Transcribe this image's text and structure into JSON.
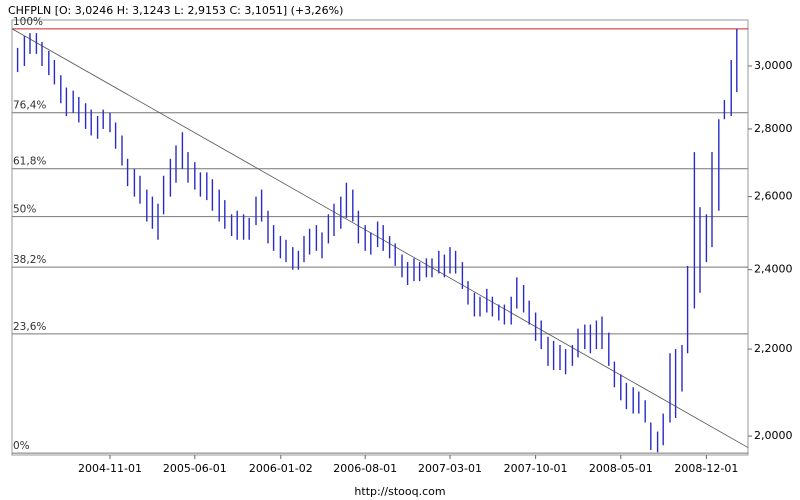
{
  "chart_data": {
    "type": "ohlc",
    "title": "CHFPLN [O: 3,0246  H: 3,1243  L: 2,9153  C: 3,1051] (+3,26%)",
    "source": "http://stooq.com",
    "log_scale": true,
    "ylim": [
      1.959,
      3.155
    ],
    "yticks": [
      {
        "value": 2,
        "label": "2,0000"
      },
      {
        "value": 2.2,
        "label": "2,2000"
      },
      {
        "value": 2.4,
        "label": "2,4000"
      },
      {
        "value": 2.6,
        "label": "2,6000"
      },
      {
        "value": 2.8,
        "label": "2,8000"
      },
      {
        "value": 3,
        "label": "3,0000"
      }
    ],
    "xlim": [
      "2004-03-01",
      "2009-03-15"
    ],
    "xticks": [
      "2004-11-01",
      "2005-06-01",
      "2006-01-02",
      "2006-08-01",
      "2007-03-01",
      "2007-10-01",
      "2008-05-01",
      "2008-12-01"
    ],
    "color": "#2a2ac8",
    "x": [
      "2004-03-15",
      "2004-04-01",
      "2004-04-15",
      "2004-05-01",
      "2004-05-15",
      "2004-06-01",
      "2004-06-15",
      "2004-07-01",
      "2004-07-15",
      "2004-08-01",
      "2004-08-15",
      "2004-09-01",
      "2004-09-15",
      "2004-10-01",
      "2004-10-15",
      "2004-11-01",
      "2004-11-15",
      "2004-12-01",
      "2004-12-15",
      "2005-01-01",
      "2005-01-15",
      "2005-02-01",
      "2005-02-15",
      "2005-03-01",
      "2005-03-15",
      "2005-04-01",
      "2005-04-15",
      "2005-05-01",
      "2005-05-15",
      "2005-06-01",
      "2005-06-15",
      "2005-07-01",
      "2005-07-15",
      "2005-08-01",
      "2005-08-15",
      "2005-09-01",
      "2005-09-15",
      "2005-10-01",
      "2005-10-15",
      "2005-11-01",
      "2005-11-15",
      "2005-12-01",
      "2005-12-15",
      "2006-01-01",
      "2006-01-15",
      "2006-02-01",
      "2006-02-15",
      "2006-03-01",
      "2006-03-15",
      "2006-04-01",
      "2006-04-15",
      "2006-05-01",
      "2006-05-15",
      "2006-06-01",
      "2006-06-15",
      "2006-07-01",
      "2006-07-15",
      "2006-08-01",
      "2006-08-15",
      "2006-09-01",
      "2006-09-15",
      "2006-10-01",
      "2006-10-15",
      "2006-11-01",
      "2006-11-15",
      "2006-12-01",
      "2006-12-15",
      "2007-01-01",
      "2007-01-15",
      "2007-02-01",
      "2007-02-15",
      "2007-03-01",
      "2007-03-15",
      "2007-04-01",
      "2007-04-15",
      "2007-05-01",
      "2007-05-15",
      "2007-06-01",
      "2007-06-15",
      "2007-07-01",
      "2007-07-15",
      "2007-08-01",
      "2007-08-15",
      "2007-09-01",
      "2007-09-15",
      "2007-10-01",
      "2007-10-15",
      "2007-11-01",
      "2007-11-15",
      "2007-12-01",
      "2007-12-15",
      "2008-01-01",
      "2008-01-15",
      "2008-02-01",
      "2008-02-15",
      "2008-03-01",
      "2008-03-15",
      "2008-04-01",
      "2008-04-15",
      "2008-05-01",
      "2008-05-15",
      "2008-06-01",
      "2008-06-15",
      "2008-07-01",
      "2008-07-15",
      "2008-08-01",
      "2008-08-15",
      "2008-09-01",
      "2008-09-15",
      "2008-10-01",
      "2008-10-15",
      "2008-11-01",
      "2008-11-15",
      "2008-12-01",
      "2008-12-15",
      "2009-01-01",
      "2009-01-15",
      "2009-02-01",
      "2009-02-15"
    ],
    "high": [
      3.06,
      3.1,
      3.11,
      3.11,
      3.08,
      3.05,
      3.02,
      2.97,
      2.93,
      2.92,
      2.9,
      2.88,
      2.86,
      2.84,
      2.86,
      2.85,
      2.82,
      2.78,
      2.71,
      2.68,
      2.66,
      2.62,
      2.6,
      2.58,
      2.66,
      2.71,
      2.75,
      2.79,
      2.73,
      2.7,
      2.67,
      2.67,
      2.65,
      2.62,
      2.59,
      2.55,
      2.56,
      2.55,
      2.54,
      2.6,
      2.62,
      2.56,
      2.52,
      2.49,
      2.48,
      2.46,
      2.45,
      2.49,
      2.51,
      2.52,
      2.5,
      2.55,
      2.58,
      2.6,
      2.64,
      2.62,
      2.56,
      2.52,
      2.5,
      2.53,
      2.52,
      2.49,
      2.47,
      2.44,
      2.42,
      2.43,
      2.42,
      2.43,
      2.43,
      2.45,
      2.44,
      2.46,
      2.45,
      2.42,
      2.37,
      2.34,
      2.33,
      2.35,
      2.33,
      2.31,
      2.31,
      2.33,
      2.38,
      2.36,
      2.32,
      2.29,
      2.27,
      2.23,
      2.22,
      2.21,
      2.2,
      2.21,
      2.25,
      2.26,
      2.26,
      2.27,
      2.28,
      2.24,
      2.17,
      2.14,
      2.12,
      2.11,
      2.1,
      2.08,
      2.03,
      2.01,
      2.05,
      2.19,
      2.2,
      2.21,
      2.41,
      2.73,
      2.57,
      2.55,
      2.73,
      2.83,
      2.89,
      3.02,
      3.1243
    ],
    "low": [
      2.98,
      3.0,
      3.04,
      3.04,
      3.0,
      2.97,
      2.94,
      2.88,
      2.84,
      2.85,
      2.82,
      2.8,
      2.78,
      2.77,
      2.8,
      2.79,
      2.74,
      2.69,
      2.63,
      2.6,
      2.58,
      2.53,
      2.51,
      2.48,
      2.55,
      2.6,
      2.64,
      2.68,
      2.64,
      2.62,
      2.6,
      2.59,
      2.56,
      2.53,
      2.51,
      2.49,
      2.48,
      2.48,
      2.48,
      2.52,
      2.53,
      2.47,
      2.45,
      2.43,
      2.42,
      2.4,
      2.4,
      2.42,
      2.44,
      2.45,
      2.43,
      2.47,
      2.49,
      2.51,
      2.54,
      2.53,
      2.47,
      2.45,
      2.44,
      2.46,
      2.45,
      2.43,
      2.41,
      2.38,
      2.36,
      2.37,
      2.37,
      2.38,
      2.38,
      2.39,
      2.38,
      2.39,
      2.39,
      2.35,
      2.31,
      2.28,
      2.28,
      2.29,
      2.28,
      2.27,
      2.26,
      2.26,
      2.3,
      2.29,
      2.26,
      2.22,
      2.2,
      2.16,
      2.15,
      2.15,
      2.14,
      2.16,
      2.18,
      2.2,
      2.19,
      2.2,
      2.2,
      2.16,
      2.11,
      2.08,
      2.06,
      2.05,
      2.05,
      2.03,
      1.97,
      1.965,
      1.98,
      2.03,
      2.04,
      2.1,
      2.19,
      2.3,
      2.34,
      2.42,
      2.46,
      2.56,
      2.83,
      2.84,
      2.9153
    ],
    "fib": {
      "low": 1.963,
      "high": 3.1243,
      "line_color": "#777777",
      "top_color": "#cc2222",
      "levels": [
        {
          "value": 100,
          "label": "100%"
        },
        {
          "value": 76.4,
          "label": "76,4%"
        },
        {
          "value": 61.8,
          "label": "61,8%"
        },
        {
          "value": 50,
          "label": "50%"
        },
        {
          "value": 38.2,
          "label": "38,2%"
        },
        {
          "value": 23.6,
          "label": "23,6%"
        },
        {
          "value": 0,
          "label": "0%"
        }
      ]
    },
    "trendline": {
      "x": [
        "2004-03-01",
        "2009-03-15"
      ],
      "y": [
        3.125,
        1.975
      ],
      "color": "#555555"
    }
  }
}
